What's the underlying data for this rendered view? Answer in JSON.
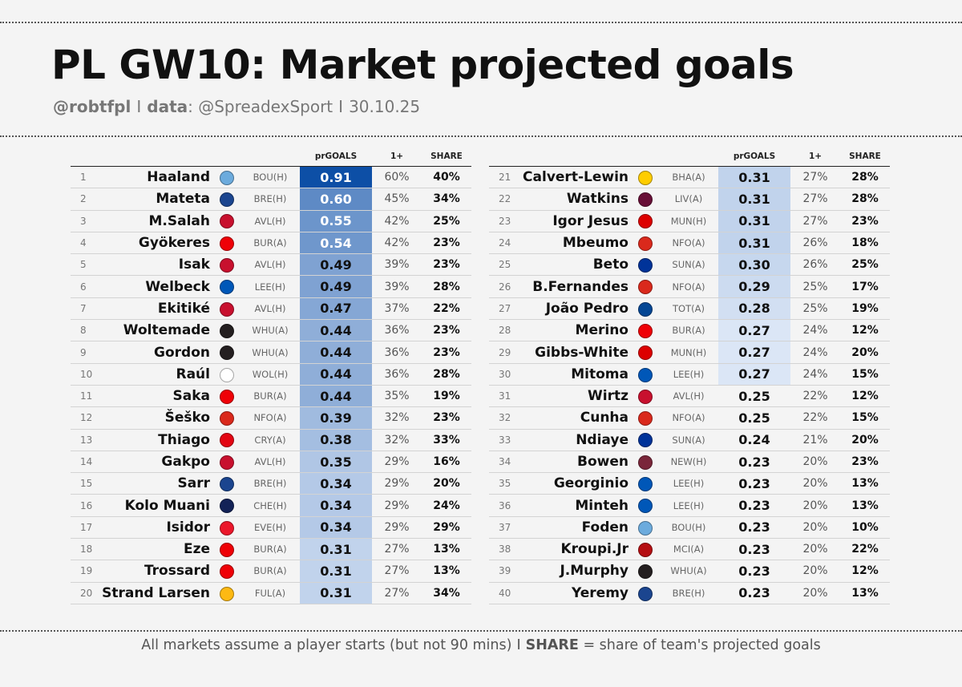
{
  "header": {
    "title": "PL GW10: Market projected goals",
    "handle": "@robtfpl",
    "separator": "I",
    "data_label": "data",
    "data_source": ": @SpreadexSport",
    "date": "30.10.25"
  },
  "footer": {
    "text_before": "All markets assume a player starts (but not 90 mins)",
    "separator": "I",
    "share_label": "SHARE",
    "share_desc": " = share of team's projected goals"
  },
  "colors": {
    "background": "#f4f4f4",
    "pr_max": "#0d4fa6",
    "pr_min": "#dbe6f6",
    "pr_none": "#f4f4f4"
  },
  "badge_colors": {
    "MCI": "#6cabdd",
    "CRY": "#1b458f",
    "LIV": "#c8102e",
    "ARS": "#ef0107",
    "BHA": "#0057b8",
    "NEW": "#241f20",
    "FUL": "#ffffff",
    "MUN": "#da291c",
    "BRE": "#e30613",
    "TOT": "#132257",
    "SUN": "#eb172b",
    "WOL": "#fdb913",
    "LEE": "#ffcd00",
    "AVL": "#670e36",
    "NFO": "#dd0000",
    "EVE": "#003399",
    "CHE": "#034694",
    "WHU": "#7a263a",
    "BOU": "#b50e12"
  },
  "chart_data": {
    "type": "table",
    "columns": [
      "",
      "",
      "",
      "",
      "prGOALS",
      "1+",
      "SHARE"
    ],
    "color_scale": {
      "column": "prGOALS",
      "min": 0.27,
      "max": 0.91
    },
    "rows": [
      {
        "rank": 1,
        "name": "Haaland",
        "team": "MCI",
        "opponent": "BOU(H)",
        "prGOALS": "0.91",
        "one_plus": "60%",
        "share": "40%"
      },
      {
        "rank": 2,
        "name": "Mateta",
        "team": "CRY",
        "opponent": "BRE(H)",
        "prGOALS": "0.60",
        "one_plus": "45%",
        "share": "34%"
      },
      {
        "rank": 3,
        "name": "M.Salah",
        "team": "LIV",
        "opponent": "AVL(H)",
        "prGOALS": "0.55",
        "one_plus": "42%",
        "share": "25%"
      },
      {
        "rank": 4,
        "name": "Gyökeres",
        "team": "ARS",
        "opponent": "BUR(A)",
        "prGOALS": "0.54",
        "one_plus": "42%",
        "share": "23%"
      },
      {
        "rank": 5,
        "name": "Isak",
        "team": "LIV",
        "opponent": "AVL(H)",
        "prGOALS": "0.49",
        "one_plus": "39%",
        "share": "23%"
      },
      {
        "rank": 6,
        "name": "Welbeck",
        "team": "BHA",
        "opponent": "LEE(H)",
        "prGOALS": "0.49",
        "one_plus": "39%",
        "share": "28%"
      },
      {
        "rank": 7,
        "name": "Ekitiké",
        "team": "LIV",
        "opponent": "AVL(H)",
        "prGOALS": "0.47",
        "one_plus": "37%",
        "share": "22%"
      },
      {
        "rank": 8,
        "name": "Woltemade",
        "team": "NEW",
        "opponent": "WHU(A)",
        "prGOALS": "0.44",
        "one_plus": "36%",
        "share": "23%"
      },
      {
        "rank": 9,
        "name": "Gordon",
        "team": "NEW",
        "opponent": "WHU(A)",
        "prGOALS": "0.44",
        "one_plus": "36%",
        "share": "23%"
      },
      {
        "rank": 10,
        "name": "Raúl",
        "team": "FUL",
        "opponent": "WOL(H)",
        "prGOALS": "0.44",
        "one_plus": "36%",
        "share": "28%"
      },
      {
        "rank": 11,
        "name": "Saka",
        "team": "ARS",
        "opponent": "BUR(A)",
        "prGOALS": "0.44",
        "one_plus": "35%",
        "share": "19%"
      },
      {
        "rank": 12,
        "name": "Šeško",
        "team": "MUN",
        "opponent": "NFO(A)",
        "prGOALS": "0.39",
        "one_plus": "32%",
        "share": "23%"
      },
      {
        "rank": 13,
        "name": "Thiago",
        "team": "BRE",
        "opponent": "CRY(A)",
        "prGOALS": "0.38",
        "one_plus": "32%",
        "share": "33%"
      },
      {
        "rank": 14,
        "name": "Gakpo",
        "team": "LIV",
        "opponent": "AVL(H)",
        "prGOALS": "0.35",
        "one_plus": "29%",
        "share": "16%"
      },
      {
        "rank": 15,
        "name": "Sarr",
        "team": "CRY",
        "opponent": "BRE(H)",
        "prGOALS": "0.34",
        "one_plus": "29%",
        "share": "20%"
      },
      {
        "rank": 16,
        "name": "Kolo Muani",
        "team": "TOT",
        "opponent": "CHE(H)",
        "prGOALS": "0.34",
        "one_plus": "29%",
        "share": "24%"
      },
      {
        "rank": 17,
        "name": "Isidor",
        "team": "SUN",
        "opponent": "EVE(H)",
        "prGOALS": "0.34",
        "one_plus": "29%",
        "share": "29%"
      },
      {
        "rank": 18,
        "name": "Eze",
        "team": "ARS",
        "opponent": "BUR(A)",
        "prGOALS": "0.31",
        "one_plus": "27%",
        "share": "13%"
      },
      {
        "rank": 19,
        "name": "Trossard",
        "team": "ARS",
        "opponent": "BUR(A)",
        "prGOALS": "0.31",
        "one_plus": "27%",
        "share": "13%"
      },
      {
        "rank": 20,
        "name": "Strand Larsen",
        "team": "WOL",
        "opponent": "FUL(A)",
        "prGOALS": "0.31",
        "one_plus": "27%",
        "share": "34%"
      },
      {
        "rank": 21,
        "name": "Calvert-Lewin",
        "team": "LEE",
        "opponent": "BHA(A)",
        "prGOALS": "0.31",
        "one_plus": "27%",
        "share": "28%"
      },
      {
        "rank": 22,
        "name": "Watkins",
        "team": "AVL",
        "opponent": "LIV(A)",
        "prGOALS": "0.31",
        "one_plus": "27%",
        "share": "28%"
      },
      {
        "rank": 23,
        "name": "Igor Jesus",
        "team": "NFO",
        "opponent": "MUN(H)",
        "prGOALS": "0.31",
        "one_plus": "27%",
        "share": "23%"
      },
      {
        "rank": 24,
        "name": "Mbeumo",
        "team": "MUN",
        "opponent": "NFO(A)",
        "prGOALS": "0.31",
        "one_plus": "26%",
        "share": "18%"
      },
      {
        "rank": 25,
        "name": "Beto",
        "team": "EVE",
        "opponent": "SUN(A)",
        "prGOALS": "0.30",
        "one_plus": "26%",
        "share": "25%"
      },
      {
        "rank": 26,
        "name": "B.Fernandes",
        "team": "MUN",
        "opponent": "NFO(A)",
        "prGOALS": "0.29",
        "one_plus": "25%",
        "share": "17%"
      },
      {
        "rank": 27,
        "name": "João Pedro",
        "team": "CHE",
        "opponent": "TOT(A)",
        "prGOALS": "0.28",
        "one_plus": "25%",
        "share": "19%"
      },
      {
        "rank": 28,
        "name": "Merino",
        "team": "ARS",
        "opponent": "BUR(A)",
        "prGOALS": "0.27",
        "one_plus": "24%",
        "share": "12%"
      },
      {
        "rank": 29,
        "name": "Gibbs-White",
        "team": "NFO",
        "opponent": "MUN(H)",
        "prGOALS": "0.27",
        "one_plus": "24%",
        "share": "20%"
      },
      {
        "rank": 30,
        "name": "Mitoma",
        "team": "BHA",
        "opponent": "LEE(H)",
        "prGOALS": "0.27",
        "one_plus": "24%",
        "share": "15%"
      },
      {
        "rank": 31,
        "name": "Wirtz",
        "team": "LIV",
        "opponent": "AVL(H)",
        "prGOALS": "0.25",
        "one_plus": "22%",
        "share": "12%"
      },
      {
        "rank": 32,
        "name": "Cunha",
        "team": "MUN",
        "opponent": "NFO(A)",
        "prGOALS": "0.25",
        "one_plus": "22%",
        "share": "15%"
      },
      {
        "rank": 33,
        "name": "Ndiaye",
        "team": "EVE",
        "opponent": "SUN(A)",
        "prGOALS": "0.24",
        "one_plus": "21%",
        "share": "20%"
      },
      {
        "rank": 34,
        "name": "Bowen",
        "team": "WHU",
        "opponent": "NEW(H)",
        "prGOALS": "0.23",
        "one_plus": "20%",
        "share": "23%"
      },
      {
        "rank": 35,
        "name": "Georginio",
        "team": "BHA",
        "opponent": "LEE(H)",
        "prGOALS": "0.23",
        "one_plus": "20%",
        "share": "13%"
      },
      {
        "rank": 36,
        "name": "Minteh",
        "team": "BHA",
        "opponent": "LEE(H)",
        "prGOALS": "0.23",
        "one_plus": "20%",
        "share": "13%"
      },
      {
        "rank": 37,
        "name": "Foden",
        "team": "MCI",
        "opponent": "BOU(H)",
        "prGOALS": "0.23",
        "one_plus": "20%",
        "share": "10%"
      },
      {
        "rank": 38,
        "name": "Kroupi.Jr",
        "team": "BOU",
        "opponent": "MCI(A)",
        "prGOALS": "0.23",
        "one_plus": "20%",
        "share": "22%"
      },
      {
        "rank": 39,
        "name": "J.Murphy",
        "team": "NEW",
        "opponent": "WHU(A)",
        "prGOALS": "0.23",
        "one_plus": "20%",
        "share": "12%"
      },
      {
        "rank": 40,
        "name": "Yeremy",
        "team": "CRY",
        "opponent": "BRE(H)",
        "prGOALS": "0.23",
        "one_plus": "20%",
        "share": "13%"
      }
    ]
  }
}
